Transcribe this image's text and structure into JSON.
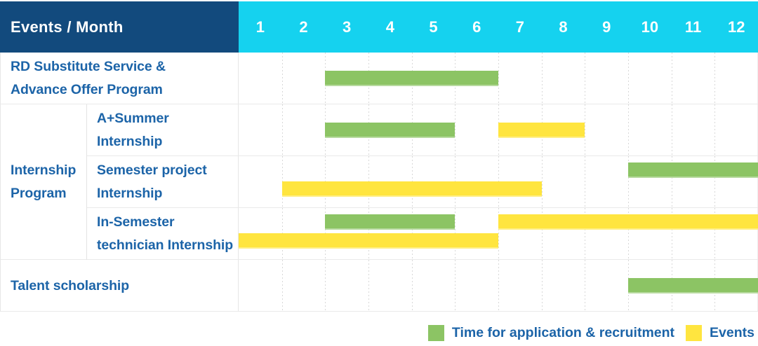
{
  "header": {
    "title": "Events / Month",
    "months": [
      "1",
      "2",
      "3",
      "4",
      "5",
      "6",
      "7",
      "8",
      "9",
      "10",
      "11",
      "12"
    ]
  },
  "group_label": [
    "Internship",
    "Program"
  ],
  "rows": [
    {
      "id": "rd-substitute-service",
      "label": [
        "RD Substitute Service &",
        "Advance Offer Program"
      ],
      "bars": [
        {
          "type": "application",
          "start_month": 3,
          "end_month": 6,
          "lane": "center"
        }
      ]
    },
    {
      "id": "a-plus-summer-internship",
      "group": "Internship Program",
      "label": [
        "A+Summer",
        "Internship"
      ],
      "bars": [
        {
          "type": "application",
          "start_month": 3,
          "end_month": 5,
          "lane": "center"
        },
        {
          "type": "event",
          "start_month": 7,
          "end_month": 8,
          "lane": "center"
        }
      ]
    },
    {
      "id": "semester-project-internship",
      "group": "Internship Program",
      "label": [
        "Semester project",
        "Internship"
      ],
      "bars": [
        {
          "type": "application",
          "start_month": 10,
          "end_month": 12,
          "lane": "top"
        },
        {
          "type": "event",
          "start_month": 2,
          "end_month": 7,
          "lane": "bottom"
        }
      ]
    },
    {
      "id": "in-semester-technician-internship",
      "group": "Internship Program",
      "label": [
        "In-Semester",
        "technician Internship"
      ],
      "bars": [
        {
          "type": "application",
          "start_month": 3,
          "end_month": 5,
          "lane": "top"
        },
        {
          "type": "event",
          "start_month": 7,
          "end_month": 12,
          "lane": "top"
        },
        {
          "type": "event",
          "start_month": 1,
          "end_month": 6,
          "lane": "bottom"
        }
      ]
    },
    {
      "id": "talent-scholarship",
      "label": [
        "Talent scholarship"
      ],
      "bars": [
        {
          "type": "application",
          "start_month": 10,
          "end_month": 12,
          "lane": "center"
        }
      ]
    }
  ],
  "legend": [
    {
      "type": "application",
      "label": "Time for application & recruitment"
    },
    {
      "type": "event",
      "label": "Events"
    }
  ],
  "colors": {
    "header_bg": "#124A7D",
    "months_bg": "#15D2EF",
    "application": "#8CC464",
    "event": "#FFE53F",
    "label_text": "#1C64A8",
    "header_text": "#FFFFFF"
  },
  "chart_data": {
    "type": "table",
    "title": "Events / Month",
    "x_axis": {
      "label": "Month",
      "ticks": [
        1,
        2,
        3,
        4,
        5,
        6,
        7,
        8,
        9,
        10,
        11,
        12
      ]
    },
    "legend_entries": [
      "Time for application & recruitment",
      "Events"
    ],
    "series": [
      {
        "name": "RD Substitute Service & Advance Offer Program",
        "application_recruitment_month_ranges": [
          [
            3,
            6
          ]
        ],
        "event_month_ranges": []
      },
      {
        "name": "Internship Program - A+Summer Internship",
        "application_recruitment_month_ranges": [
          [
            3,
            5
          ]
        ],
        "event_month_ranges": [
          [
            7,
            8
          ]
        ]
      },
      {
        "name": "Internship Program - Semester project Internship",
        "application_recruitment_month_ranges": [
          [
            10,
            12
          ]
        ],
        "event_month_ranges": [
          [
            2,
            7
          ]
        ]
      },
      {
        "name": "Internship Program - In-Semester technician Internship",
        "application_recruitment_month_ranges": [
          [
            3,
            5
          ]
        ],
        "event_month_ranges": [
          [
            1,
            6
          ],
          [
            7,
            12
          ]
        ]
      },
      {
        "name": "Talent scholarship",
        "application_recruitment_month_ranges": [
          [
            10,
            12
          ]
        ],
        "event_month_ranges": []
      }
    ]
  }
}
